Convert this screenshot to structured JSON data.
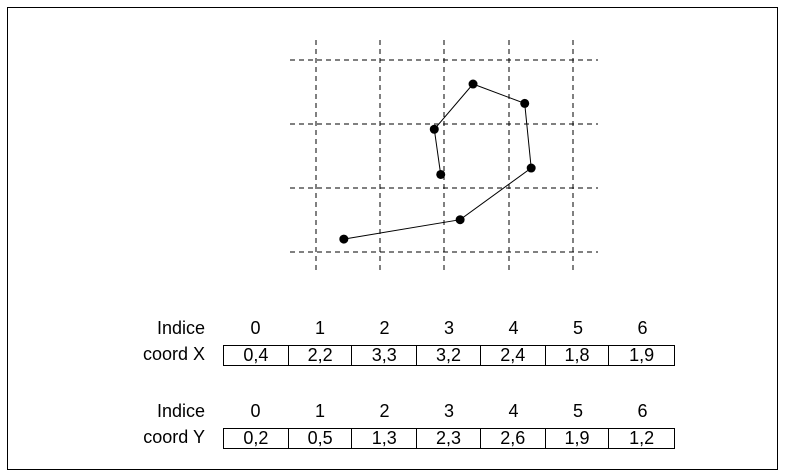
{
  "tables": [
    {
      "header_label": "Indice",
      "row_label": "coord X",
      "indices": [
        "0",
        "1",
        "2",
        "3",
        "4",
        "5",
        "6"
      ],
      "values": [
        "0,4",
        "2,2",
        "3,3",
        "3,2",
        "2,4",
        "1,8",
        "1,9"
      ]
    },
    {
      "header_label": "Indice",
      "row_label": "coord Y",
      "indices": [
        "0",
        "1",
        "2",
        "3",
        "4",
        "5",
        "6"
      ],
      "values": [
        "0,2",
        "0,5",
        "1,3",
        "2,3",
        "2,6",
        "1,9",
        "1,2"
      ]
    }
  ],
  "diagram": {
    "grid_columns": 5,
    "grid_rows": 4,
    "points": [
      {
        "x": 0.4,
        "y": 0.2
      },
      {
        "x": 2.2,
        "y": 0.5
      },
      {
        "x": 3.3,
        "y": 1.3
      },
      {
        "x": 3.2,
        "y": 2.3
      },
      {
        "x": 2.4,
        "y": 2.6
      },
      {
        "x": 1.8,
        "y": 1.9
      },
      {
        "x": 1.9,
        "y": 1.2
      }
    ]
  }
}
